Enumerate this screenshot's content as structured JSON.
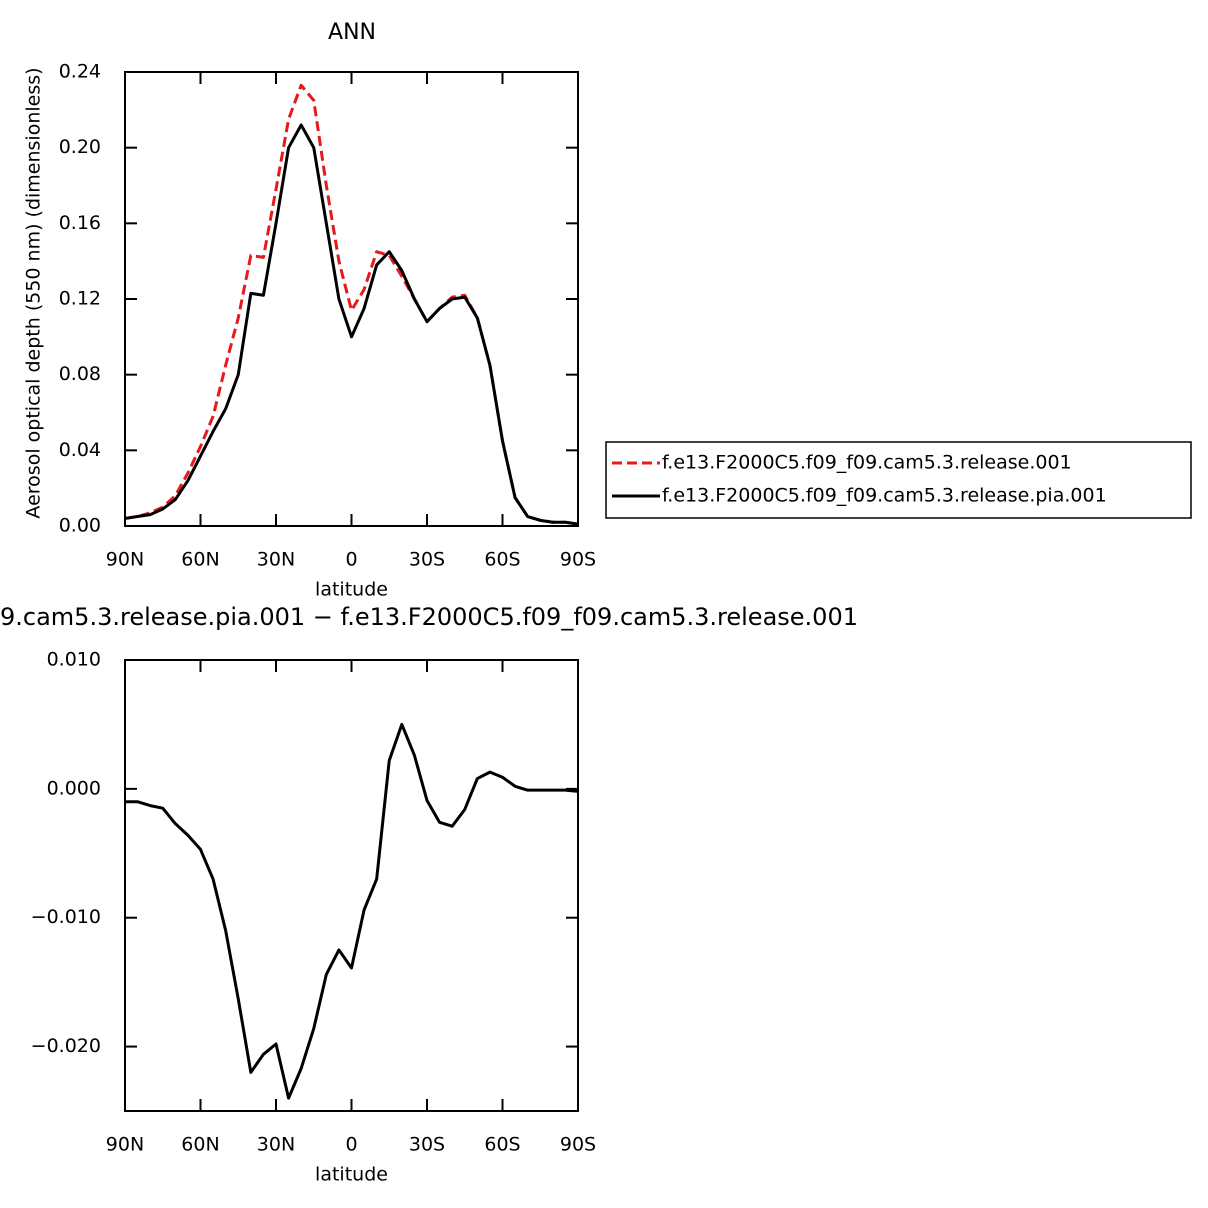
{
  "chart_data": [
    {
      "type": "line",
      "title": "ANN",
      "xlabel": "latitude",
      "ylabel": "Aerosol optical depth (550 nm) (dimensionless)",
      "x": [
        90,
        85,
        80,
        75,
        70,
        65,
        60,
        55,
        50,
        45,
        40,
        35,
        30,
        25,
        20,
        15,
        10,
        5,
        0,
        -5,
        -10,
        -15,
        -20,
        -25,
        -30,
        -35,
        -40,
        -45,
        -50,
        -55,
        -60,
        -65,
        -70,
        -75,
        -80,
        -85,
        -90
      ],
      "xlim": [
        90,
        -90
      ],
      "xticks": [
        {
          "value": 90,
          "label": "90N"
        },
        {
          "value": 60,
          "label": "60N"
        },
        {
          "value": 30,
          "label": "30N"
        },
        0,
        {
          "value": -30,
          "label": "30S"
        },
        {
          "value": -60,
          "label": "60S"
        },
        {
          "value": -90,
          "label": "90S"
        }
      ],
      "ylim": [
        0,
        0.24
      ],
      "yticks": [
        {
          "value": 0,
          "label": "0.00"
        },
        0.04,
        0.08,
        0.12,
        0.16,
        {
          "value": 0.2,
          "label": "0.20"
        },
        0.24
      ],
      "legend": "right",
      "series": [
        {
          "name": "f.e13.F2000C5.f09_f09.cam5.3.release.001",
          "color": "#e41a1c",
          "linestyle": "dashed",
          "values": [
            0.004,
            0.005,
            0.007,
            0.01,
            0.016,
            0.028,
            0.042,
            0.058,
            0.085,
            0.11,
            0.143,
            0.142,
            0.178,
            0.215,
            0.233,
            0.225,
            0.18,
            0.14,
            0.114,
            0.125,
            0.145,
            0.143,
            0.132,
            0.12,
            0.108,
            0.115,
            0.121,
            0.122,
            0.11,
            0.085,
            0.045,
            0.015,
            0.005,
            0.003,
            0.002,
            0.002,
            0.001
          ]
        },
        {
          "name": "f.e13.F2000C5.f09_f09.cam5.3.release.pia.001",
          "color": "#000000",
          "linestyle": "solid",
          "values": [
            0.004,
            0.005,
            0.006,
            0.009,
            0.014,
            0.024,
            0.037,
            0.05,
            0.062,
            0.08,
            0.123,
            0.122,
            0.16,
            0.2,
            0.212,
            0.2,
            0.16,
            0.12,
            0.1,
            0.115,
            0.138,
            0.145,
            0.135,
            0.12,
            0.108,
            0.115,
            0.12,
            0.121,
            0.11,
            0.085,
            0.045,
            0.015,
            0.005,
            0.003,
            0.002,
            0.002,
            0.001
          ]
        }
      ]
    },
    {
      "type": "line",
      "title": "9.cam5.3.release.pia.001 − f.e13.F2000C5.f09_f09.cam5.3.release.001",
      "xlabel": "latitude",
      "x": [
        90,
        85,
        80,
        75,
        70,
        65,
        60,
        55,
        50,
        45,
        40,
        35,
        30,
        25,
        20,
        15,
        10,
        5,
        0,
        -5,
        -10,
        -15,
        -20,
        -25,
        -30,
        -35,
        -40,
        -45,
        -50,
        -55,
        -60,
        -65,
        -70,
        -75,
        -80,
        -85,
        -90
      ],
      "xlim": [
        90,
        -90
      ],
      "xticks": [
        {
          "value": 90,
          "label": "90N"
        },
        {
          "value": 60,
          "label": "60N"
        },
        {
          "value": 30,
          "label": "30N"
        },
        0,
        {
          "value": -30,
          "label": "30S"
        },
        {
          "value": -60,
          "label": "60S"
        },
        {
          "value": -90,
          "label": "90S"
        }
      ],
      "ylim": [
        -0.025,
        0.01
      ],
      "yticks": [
        {
          "value": -0.02,
          "label": "−0.020"
        },
        {
          "value": -0.01,
          "label": "−0.010"
        },
        {
          "value": 0,
          "label": "0.000"
        },
        {
          "value": 0.01,
          "label": "0.010"
        }
      ],
      "series": [
        {
          "color": "#000000",
          "linestyle": "solid",
          "values": [
            -0.001,
            -0.001,
            -0.0013,
            -0.0015,
            -0.0027,
            -0.0036,
            -0.0047,
            -0.007,
            -0.011,
            -0.0163,
            -0.022,
            -0.0206,
            -0.0198,
            -0.024,
            -0.0217,
            -0.0186,
            -0.0144,
            -0.0125,
            -0.0139,
            -0.0094,
            -0.007,
            0.0022,
            0.005,
            0.0026,
            -0.0009,
            -0.0026,
            -0.0029,
            -0.0016,
            0.0008,
            0.0013,
            0.0009,
            0.0002,
            -0.0001,
            -0.0001,
            -0.0001,
            -0.0001,
            -0.0002
          ]
        }
      ]
    }
  ]
}
